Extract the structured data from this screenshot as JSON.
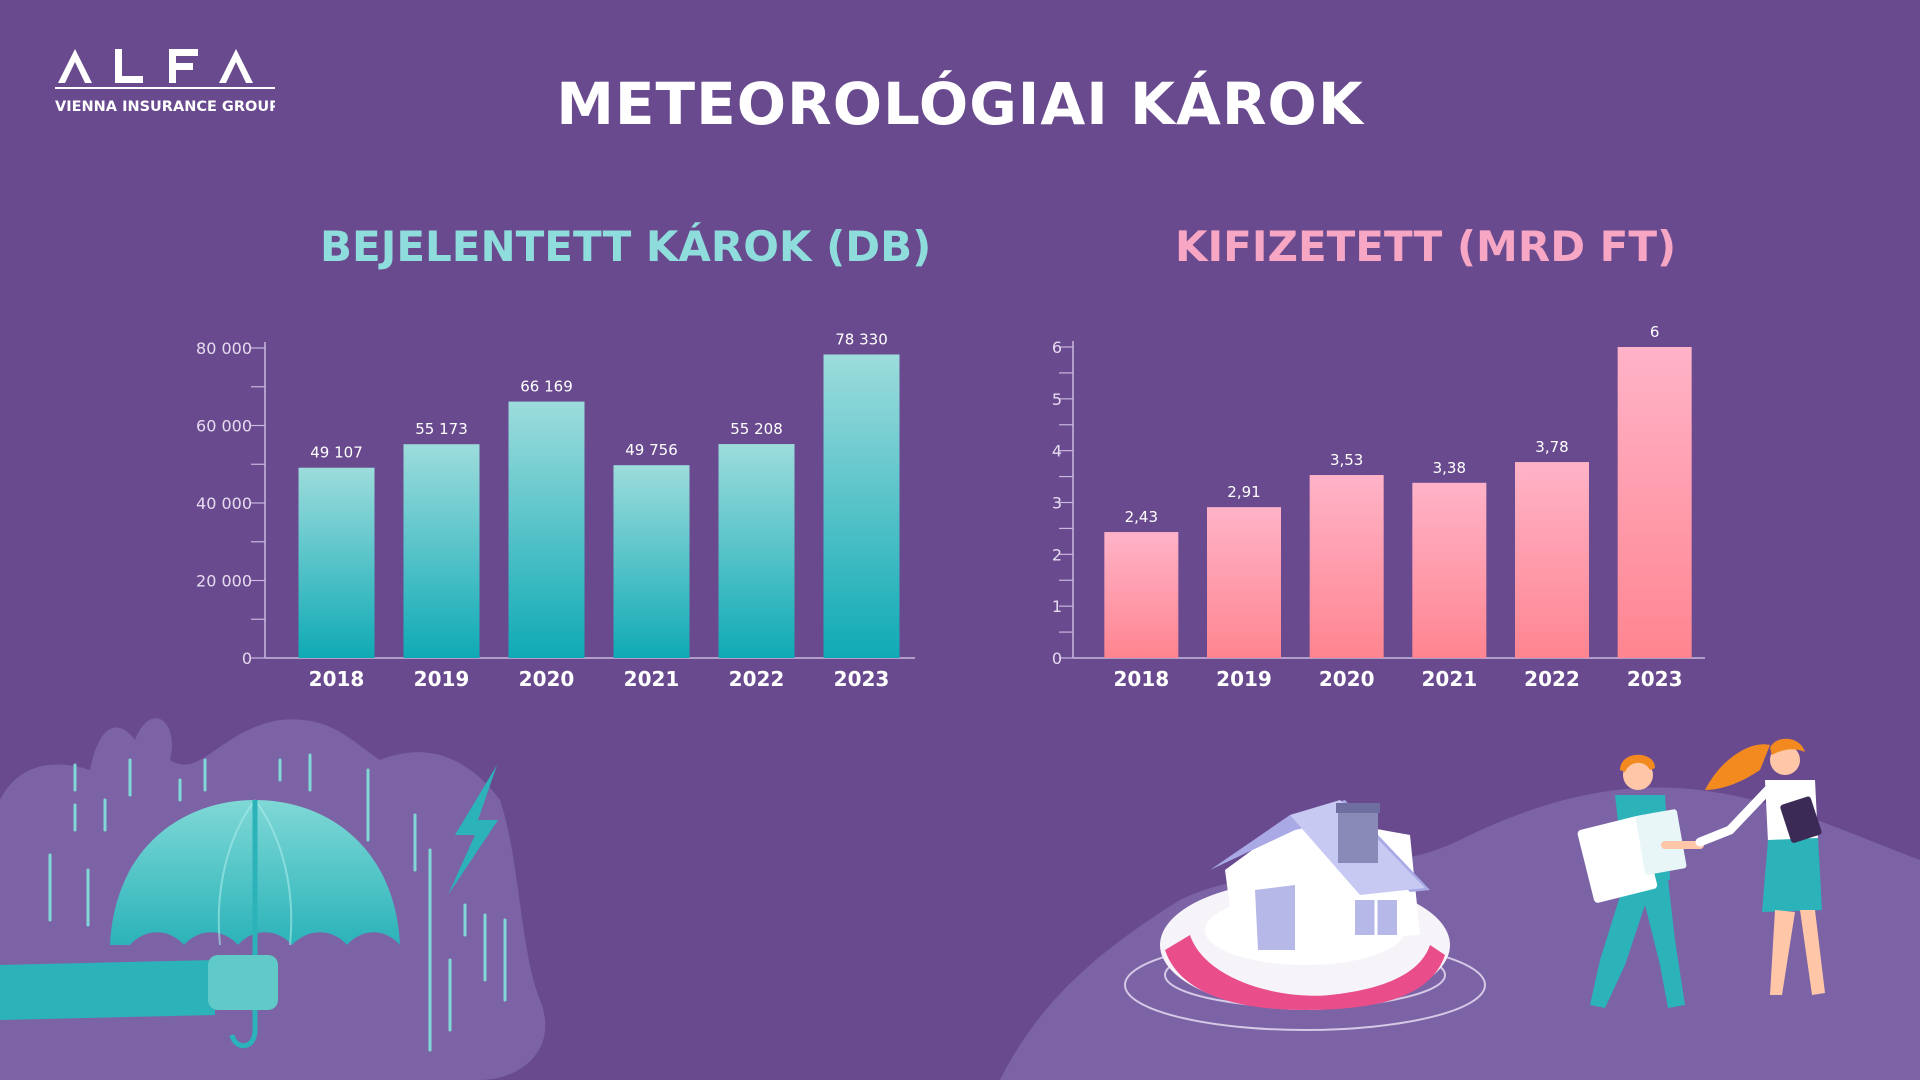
{
  "logo": {
    "brand": "ALFA",
    "tagline": "VIENNA INSURANCE GROUP"
  },
  "title": "METEOROLÓGIAI KÁROK",
  "colors": {
    "background": "#694a8e",
    "bar1_top": "#9ddcdc",
    "bar1_bottom": "#0faab5",
    "bar2_top": "#ffb3c8",
    "bar2_bottom": "#ff8590",
    "axis": "#c9b8dd"
  },
  "chart_data": [
    {
      "type": "bar",
      "title": "BEJELENTETT KÁROK (DB)",
      "categories": [
        "2018",
        "2019",
        "2020",
        "2021",
        "2022",
        "2023"
      ],
      "values": [
        49107,
        55173,
        66169,
        49756,
        55208,
        78330
      ],
      "value_labels": [
        "49 107",
        "55 173",
        "66 169",
        "49 756",
        "55 208",
        "78 330"
      ],
      "yticks": [
        0,
        20000,
        40000,
        60000,
        80000
      ],
      "ytick_labels": [
        "0",
        "20 000",
        "40 000",
        "60 000",
        "80 000"
      ],
      "ylim": [
        0,
        80000
      ],
      "grid": false
    },
    {
      "type": "bar",
      "title": "KIFIZETETT (MRD FT)",
      "categories": [
        "2018",
        "2019",
        "2020",
        "2021",
        "2022",
        "2023"
      ],
      "values": [
        2.43,
        2.91,
        3.53,
        3.38,
        3.78,
        6
      ],
      "value_labels": [
        "2,43",
        "2,91",
        "3,53",
        "3,38",
        "3,78",
        "6"
      ],
      "yticks": [
        0,
        1,
        2,
        3,
        4,
        5,
        6
      ],
      "ytick_labels": [
        "0",
        "1",
        "2",
        "3",
        "4",
        "5",
        "6"
      ],
      "ylim": [
        0,
        6
      ],
      "grid": false
    }
  ]
}
